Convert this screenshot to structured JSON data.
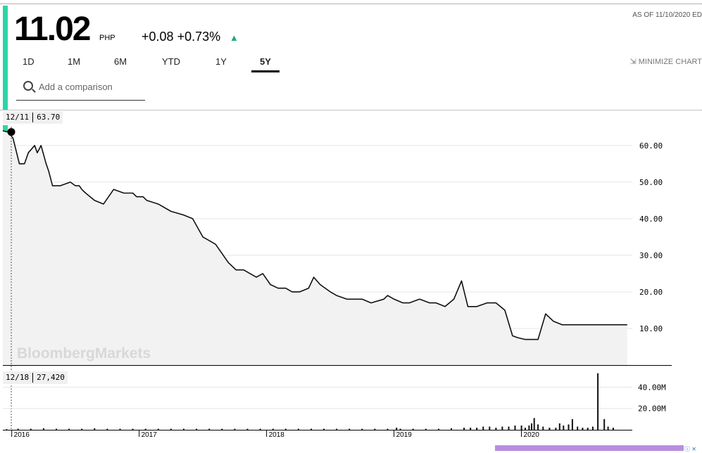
{
  "quote": {
    "price": "11.02",
    "currency": "PHP",
    "change": "+0.08",
    "change_pct": "+0.73%",
    "direction_icon": "triangle-up-icon",
    "as_of": "AS OF 11/10/2020 ED",
    "accent_color": "#2dd4a6",
    "up_color": "#1aad7e"
  },
  "tabs": [
    {
      "label": "1D"
    },
    {
      "label": "1M"
    },
    {
      "label": "6M"
    },
    {
      "label": "YTD"
    },
    {
      "label": "1Y"
    },
    {
      "label": "5Y",
      "active": true
    }
  ],
  "minimize_label": "MINIMIZE CHART",
  "comparison": {
    "placeholder": "Add a comparison"
  },
  "watermark": "BloombergMarkets",
  "tooltips": {
    "price": {
      "date": "12/11",
      "value": "63.70"
    },
    "volume": {
      "date": "12/18",
      "value": "27,420"
    }
  },
  "chart_data": [
    {
      "type": "area",
      "ylim": [
        0,
        69
      ],
      "yticks": [
        10,
        20,
        30,
        40,
        50,
        60
      ],
      "ytick_labels": [
        "10.00",
        "20.00",
        "30.00",
        "40.00",
        "50.00",
        "60.00"
      ],
      "xlim": [
        2015.93,
        2020.87
      ],
      "xticks": [
        2016,
        2017,
        2018,
        2019,
        2020
      ],
      "xtick_labels": [
        "2016",
        "2017",
        "2018",
        "2019",
        "2020"
      ],
      "grid": true,
      "x": [
        2015.93,
        2015.97,
        2016.01,
        2016.06,
        2016.1,
        2016.13,
        2016.18,
        2016.2,
        2016.23,
        2016.27,
        2016.29,
        2016.32,
        2016.38,
        2016.46,
        2016.5,
        2016.53,
        2016.55,
        2016.58,
        2016.65,
        2016.72,
        2016.8,
        2016.88,
        2016.95,
        2016.98,
        2017.03,
        2017.06,
        2017.15,
        2017.25,
        2017.35,
        2017.42,
        2017.5,
        2017.55,
        2017.6,
        2017.7,
        2017.76,
        2017.82,
        2017.87,
        2017.92,
        2017.97,
        2018.03,
        2018.09,
        2018.15,
        2018.2,
        2018.26,
        2018.33,
        2018.37,
        2018.42,
        2018.5,
        2018.55,
        2018.63,
        2018.7,
        2018.75,
        2018.82,
        2018.92,
        2018.95,
        2019.0,
        2019.07,
        2019.12,
        2019.2,
        2019.28,
        2019.33,
        2019.4,
        2019.47,
        2019.53,
        2019.58,
        2019.65,
        2019.73,
        2019.8,
        2019.87,
        2019.93,
        2019.97,
        2020.03,
        2020.08,
        2020.13,
        2020.19,
        2020.25,
        2020.32,
        2020.37,
        2020.45,
        2020.53,
        2020.57,
        2020.62,
        2020.67,
        2020.71,
        2020.74,
        2020.76,
        2020.79,
        2020.83
      ],
      "y": [
        64,
        63.7,
        62,
        55,
        55,
        58,
        60,
        58,
        60,
        55,
        53,
        49,
        49,
        50,
        49,
        49,
        48,
        47,
        45,
        44,
        48,
        47,
        47,
        46,
        46,
        45,
        44,
        42,
        41,
        40,
        35,
        34,
        33,
        28,
        26,
        26,
        25,
        24,
        25,
        22,
        21,
        21,
        20,
        20,
        21,
        24,
        22,
        20,
        19,
        18,
        18,
        18,
        17,
        18,
        19,
        18,
        17,
        17,
        18,
        17,
        17,
        16,
        18,
        23,
        16,
        16,
        17,
        17,
        15,
        8,
        7.5,
        7,
        7,
        7,
        14,
        12,
        11.02,
        11.02,
        11.02,
        11.02,
        11.02,
        11.02,
        11.02,
        11.02,
        11.02,
        11.02,
        11.02,
        11.02
      ]
    },
    {
      "type": "bar",
      "ylim": [
        0,
        60
      ],
      "yticks": [
        20,
        40
      ],
      "ytick_labels": [
        "20.00M",
        "40.00M"
      ],
      "unit": "M",
      "x": [
        2015.96,
        2016.05,
        2016.15,
        2016.25,
        2016.35,
        2016.45,
        2016.55,
        2016.65,
        2016.75,
        2016.85,
        2016.95,
        2017.05,
        2017.15,
        2017.25,
        2017.35,
        2017.45,
        2017.55,
        2017.65,
        2017.75,
        2017.85,
        2017.95,
        2018.05,
        2018.15,
        2018.25,
        2018.35,
        2018.45,
        2018.55,
        2018.65,
        2018.75,
        2018.85,
        2018.95,
        2019.02,
        2019.05,
        2019.15,
        2019.25,
        2019.35,
        2019.45,
        2019.55,
        2019.6,
        2019.65,
        2019.7,
        2019.75,
        2019.8,
        2019.85,
        2019.9,
        2019.95,
        2020.0,
        2020.03,
        2020.06,
        2020.08,
        2020.1,
        2020.13,
        2020.17,
        2020.22,
        2020.27,
        2020.3,
        2020.33,
        2020.37,
        2020.4,
        2020.44,
        2020.48,
        2020.52,
        2020.56,
        2020.6,
        2020.65,
        2020.68,
        2020.72
      ],
      "values": [
        0.5,
        1,
        1,
        1.5,
        1,
        1,
        1,
        1.5,
        1,
        1,
        1,
        1,
        1,
        1,
        1,
        1,
        1,
        1,
        1,
        1,
        1,
        1,
        1,
        1,
        1,
        1,
        1,
        1,
        1,
        1,
        1,
        2,
        1,
        1,
        1,
        1,
        1.5,
        2,
        2,
        2,
        3,
        3,
        2,
        3,
        3,
        4,
        4,
        2,
        4,
        6,
        11,
        5,
        3,
        2,
        2,
        6,
        4,
        5,
        10,
        3,
        2,
        2,
        3,
        53,
        10,
        3,
        2
      ]
    }
  ]
}
